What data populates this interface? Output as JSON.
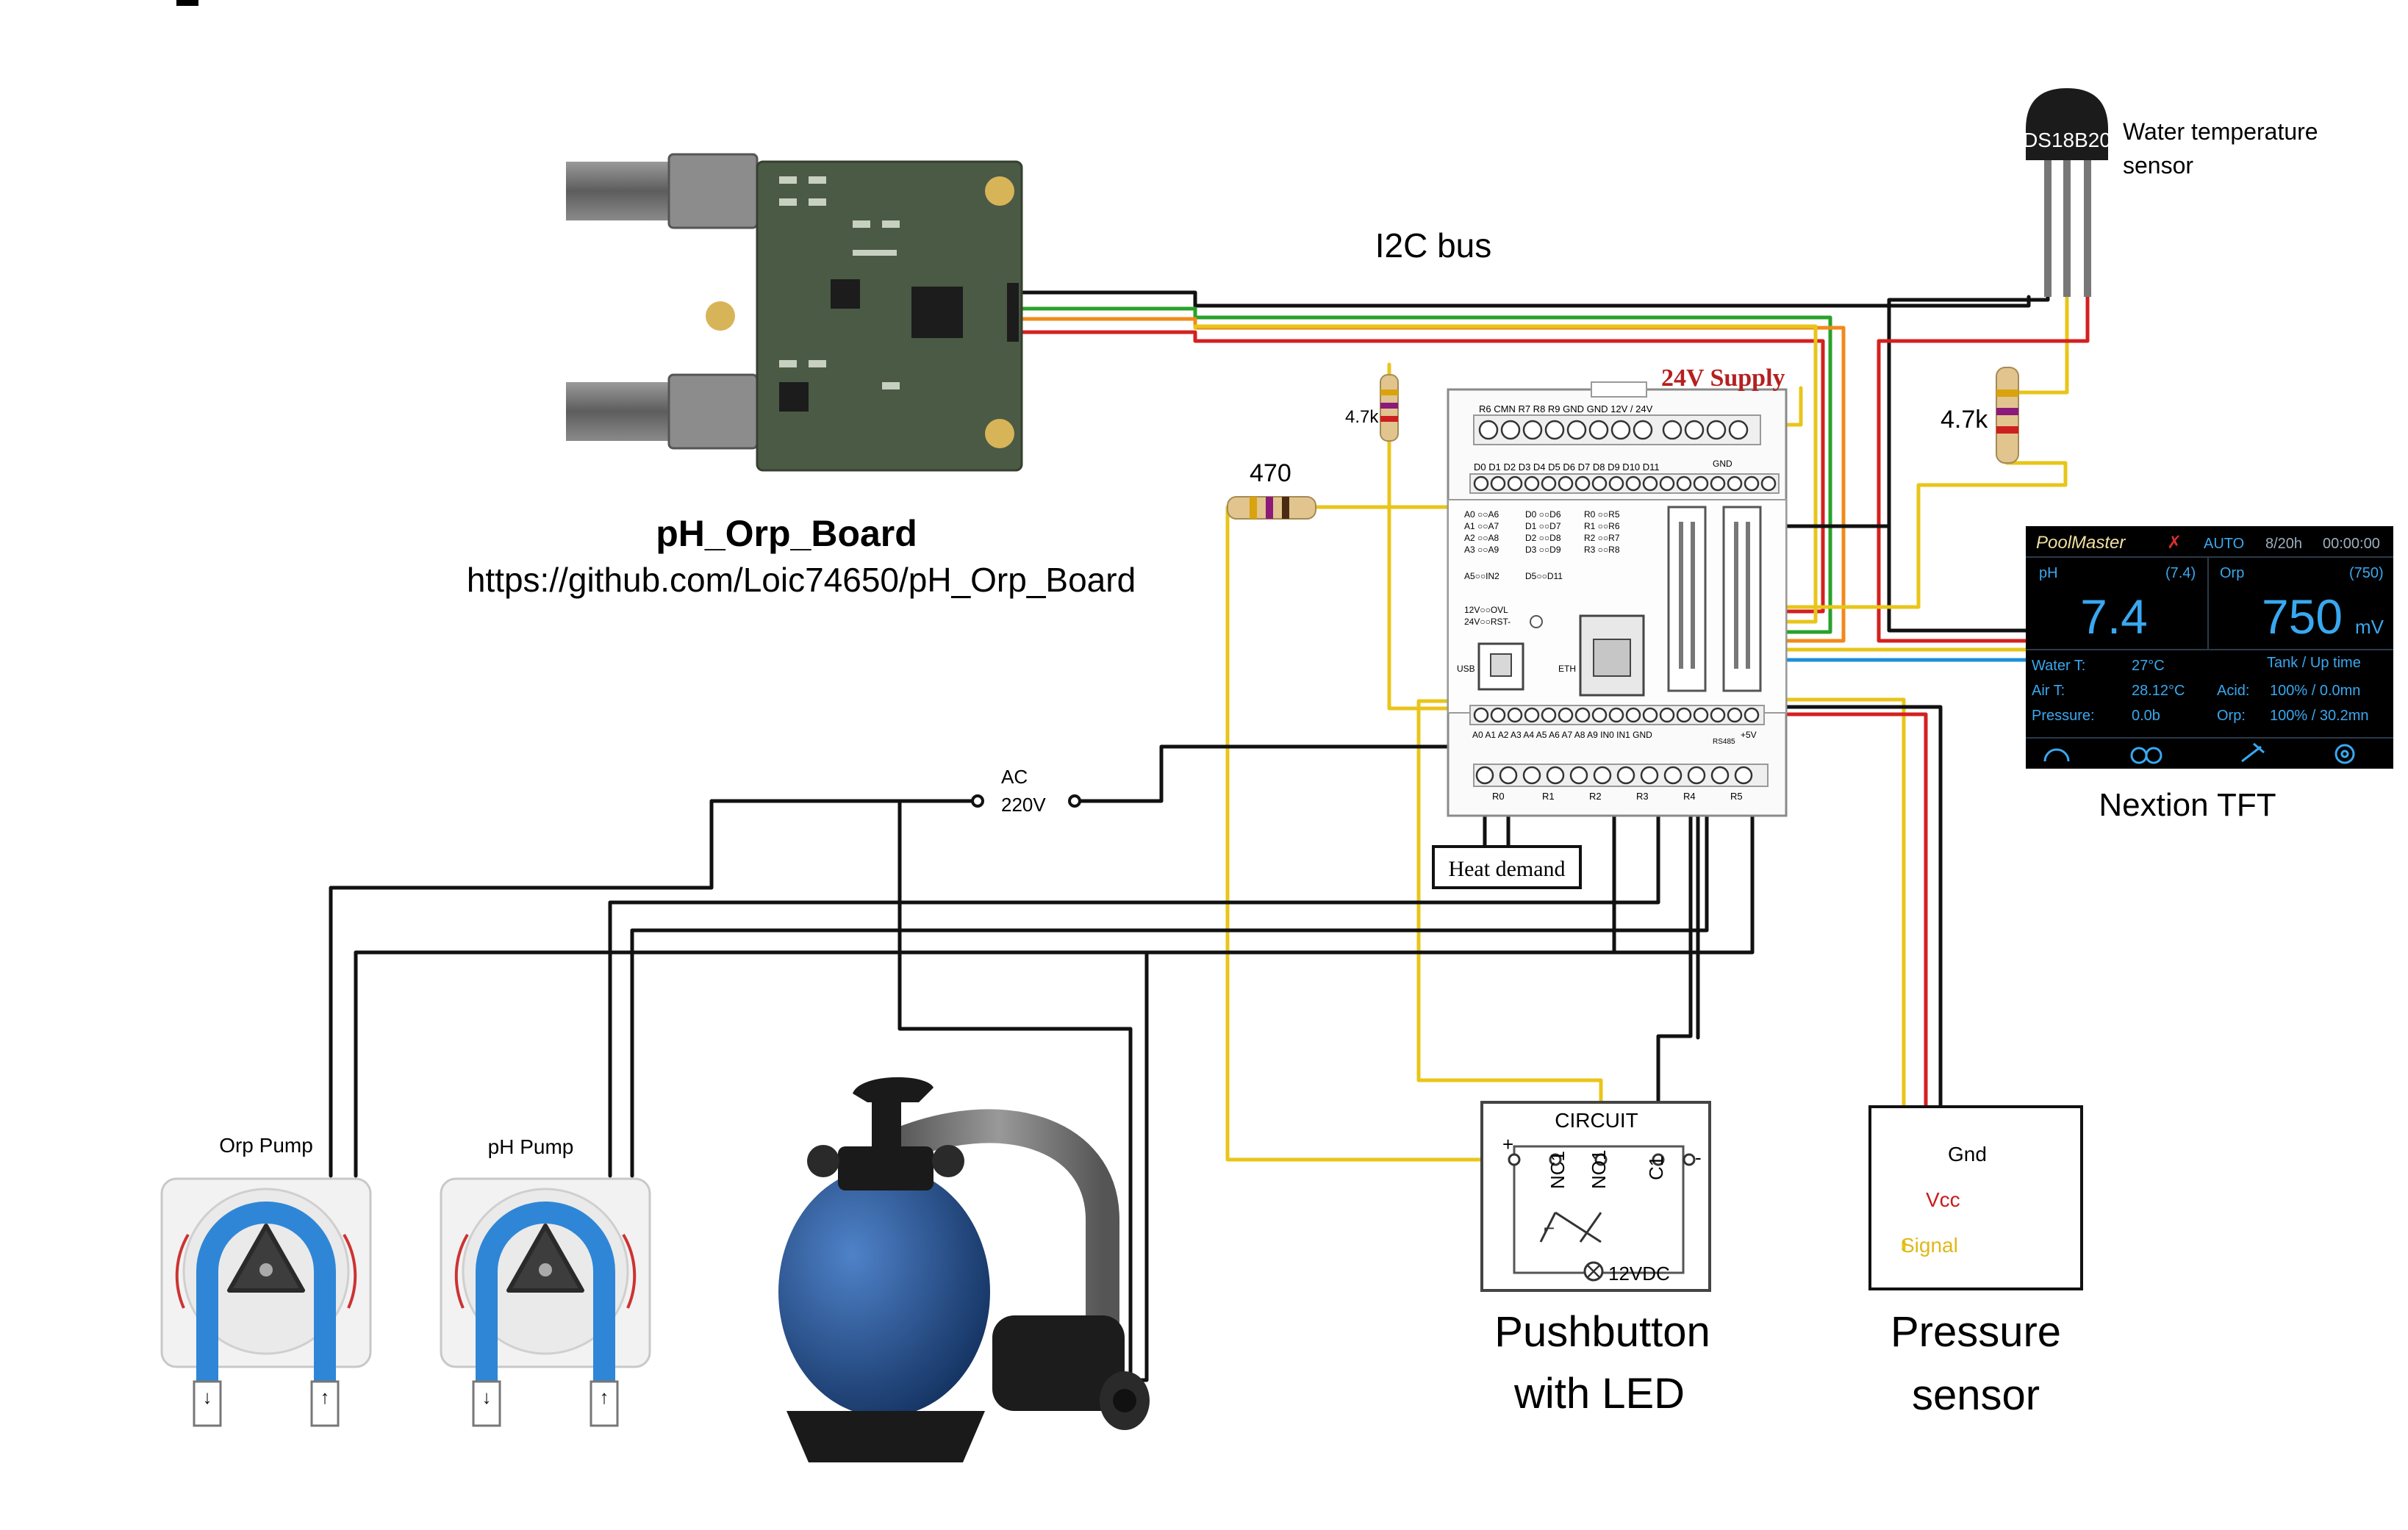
{
  "ph_orp_board": {
    "title": "pH_Orp_Board",
    "url": "https://github.com/Loic74650/pH_Orp_Board"
  },
  "i2c_label": "I2C bus",
  "temp_sensor": {
    "chip": "DS18B20",
    "label_line1": "Water temperature",
    "label_line2": "sensor"
  },
  "resistors": {
    "r_board_pullup": "4.7k",
    "r_temp_pullup": "4.7k",
    "r_led": "470"
  },
  "controller": {
    "supply_label": "24V Supply",
    "top_terminals": "R6  CMN  R7      R8       R9          GND  GND  12V / 24V",
    "digital_row": "D0  D1  D2  D3  D4  D5  D6  D7  D8  D9  D10  D11",
    "digital_gnd": "GND",
    "analog_map": [
      "A0 ○○A6",
      "A1 ○○A7",
      "A2 ○○A8",
      "A3 ○○A9"
    ],
    "digital_map": [
      "D0 ○○D6",
      "D1 ○○D7",
      "D2 ○○D8",
      "D3 ○○D9"
    ],
    "relay_map": [
      "R0 ○○R5",
      "R1 ○○R6",
      "R2 ○○R7",
      "R3 ○○R8"
    ],
    "extra_map": [
      "A5○○IN2",
      "D5○○D11"
    ],
    "power_status": [
      "12V○○OVL",
      "24V○○RST-"
    ],
    "usb": "USB",
    "eth": "ETH",
    "analog_row": "A0  A1  A2  A3  A4  A5  A6  A7  A8  A9  IN0  IN1  GND",
    "rs485": "RS485",
    "plus5v": "+5V",
    "relay_row": [
      "R0",
      "R1",
      "R2",
      "R3",
      "R4",
      "R5"
    ]
  },
  "heat_demand": "Heat demand",
  "ac_supply": {
    "line1": "AC",
    "line2": "220V"
  },
  "nextion": {
    "brand": "PoolMaster",
    "mode": "AUTO",
    "date": "8/20h",
    "time": "00:00:00",
    "ph_label": "pH",
    "ph_setpoint": "(7.4)",
    "ph_value": "7.4",
    "orp_label": "Orp",
    "orp_setpoint": "(750)",
    "orp_value": "750",
    "orp_unit": "mV",
    "water_label": "Water T:",
    "water_value": "27°C",
    "air_label": "Air T:",
    "air_value": "28.12°C",
    "pressure_label": "Pressure:",
    "pressure_value": "0.0b",
    "tank_header": "Tank  / Up time",
    "acid_label": "Acid:",
    "acid_value": "100% / 0.0mn",
    "orp2_label": "Orp:",
    "orp2_value": "100% / 30.2mn",
    "caption": "Nextion TFT"
  },
  "pumps": {
    "orp_label": "Orp Pump",
    "ph_label": "pH Pump"
  },
  "pushbutton": {
    "circuit_label": "CIRCUIT",
    "plus": "+",
    "nc1": "NC1",
    "no1": "NO1",
    "c1": "C1",
    "minus": "-",
    "voltage": "12VDC",
    "caption_line1": "Pushbutton",
    "caption_line2": "with LED"
  },
  "pressure_sensor": {
    "gnd": "Gnd",
    "vcc": "Vcc",
    "signal": "Signal",
    "caption_line1": "Pressure",
    "caption_line2": "sensor"
  },
  "colors": {
    "wire_black": "#111111",
    "wire_yellow": "#e8c51a",
    "wire_red": "#d42020",
    "wire_green": "#2aa12a",
    "wire_orange": "#f08a1c",
    "wire_blue": "#1e90d8",
    "pcb_green": "#4a5a45",
    "tft_background": "#000000",
    "tft_value": "#39a8f0",
    "pump_tube": "#2f86d6",
    "filter_tank": "#1f4f8f"
  }
}
